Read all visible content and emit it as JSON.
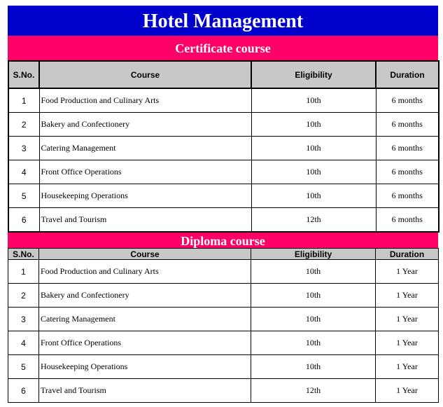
{
  "title": "Hotel Management",
  "columns": {
    "sno": "S.No.",
    "course": "Course",
    "eligibility": "Eligibility",
    "duration": "Duration"
  },
  "sections": [
    {
      "heading": "Certificate course",
      "rows": [
        {
          "sno": "1",
          "course": "Food Production and Culinary Arts",
          "eligibility": "10th",
          "duration": "6 months"
        },
        {
          "sno": "2",
          "course": "Bakery and Confectionery",
          "eligibility": "10th",
          "duration": "6 months"
        },
        {
          "sno": "3",
          "course": "Catering Management",
          "eligibility": "10th",
          "duration": "6 months"
        },
        {
          "sno": "4",
          "course": "Front Office Operations",
          "eligibility": "10th",
          "duration": "6 months"
        },
        {
          "sno": "5",
          "course": "Housekeeping Operations",
          "eligibility": "10th",
          "duration": "6 months"
        },
        {
          "sno": "6",
          "course": "Travel and Tourism",
          "eligibility": "12th",
          "duration": "6 months"
        }
      ]
    },
    {
      "heading": "Diploma course",
      "rows": [
        {
          "sno": "1",
          "course": "Food Production and Culinary Arts",
          "eligibility": "10th",
          "duration": "1 Year"
        },
        {
          "sno": "2",
          "course": "Bakery and Confectionery",
          "eligibility": "10th",
          "duration": "1 Year"
        },
        {
          "sno": "3",
          "course": "Catering Management",
          "eligibility": "10th",
          "duration": "1 Year"
        },
        {
          "sno": "4",
          "course": "Front Office Operations",
          "eligibility": "10th",
          "duration": "1 Year"
        },
        {
          "sno": "5",
          "course": "Housekeeping Operations",
          "eligibility": "10th",
          "duration": "1 Year"
        },
        {
          "sno": "6",
          "course": "Travel and Tourism",
          "eligibility": "12th",
          "duration": "1 Year"
        }
      ]
    }
  ],
  "colors": {
    "title_bg": "#0000cc",
    "section_bg": "#ff0066",
    "header_bg": "#c8c8c8"
  }
}
